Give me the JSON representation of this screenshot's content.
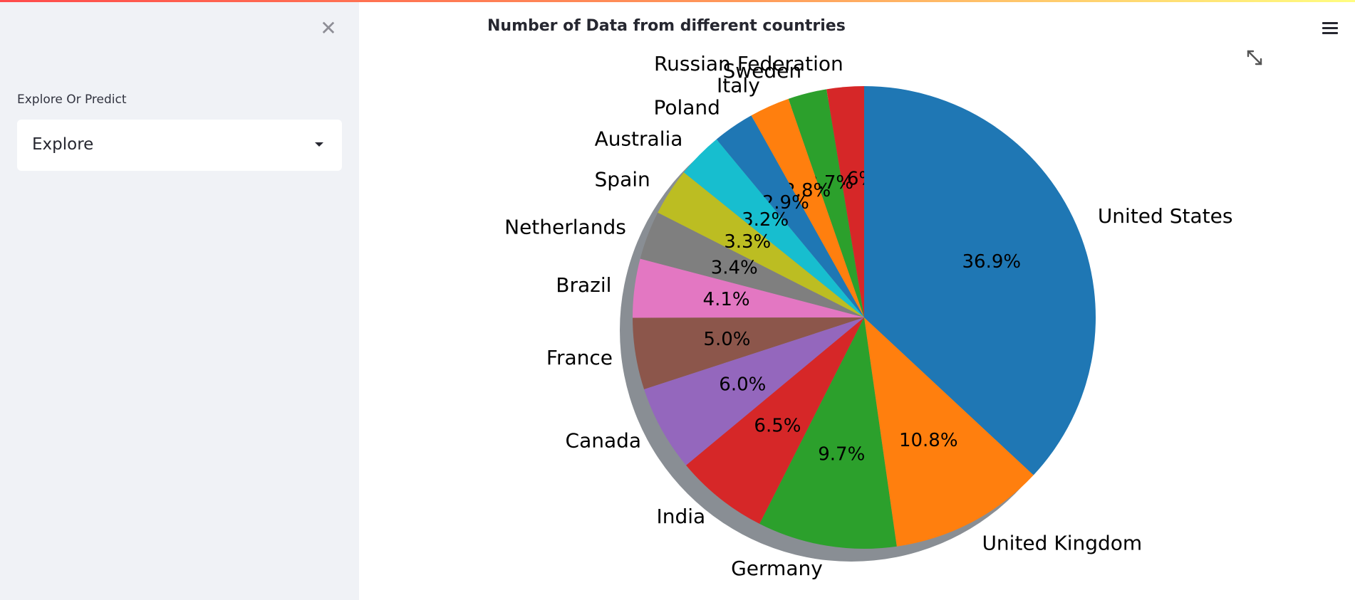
{
  "sidebar": {
    "close_icon": "close-icon",
    "select_label": "Explore Or Predict",
    "select_value": "Explore",
    "background": "#f0f2f6"
  },
  "header": {
    "menu_icon": "hamburger-menu-icon",
    "expand_icon": "fullscreen-expand-icon"
  },
  "chart_data": {
    "type": "pie",
    "title": "Number of Data from different countries",
    "shadow": true,
    "start_angle_deg": 90,
    "categories": [
      "Russian Federation",
      "Sweden",
      "Italy",
      "Poland",
      "Australia",
      "Spain",
      "Netherlands",
      "Brazil",
      "France",
      "Canada",
      "India",
      "Germany",
      "United Kingdom",
      "United States"
    ],
    "values": [
      2.6,
      2.7,
      2.8,
      2.9,
      3.2,
      3.3,
      3.4,
      4.1,
      5.0,
      6.0,
      6.5,
      9.7,
      10.8,
      36.9
    ],
    "value_labels": [
      "2.6%",
      "2.7%",
      "2.8%",
      "2.9%",
      "3.2%",
      "3.3%",
      "3.4%",
      "4.1%",
      "5.0%",
      "6.0%",
      "6.5%",
      "9.7%",
      "10.8%",
      "36.9%"
    ],
    "colors": [
      "#d62728",
      "#2ca02c",
      "#ff7f0e",
      "#1f77b4",
      "#17becf",
      "#bcbd22",
      "#7f7f7f",
      "#e377c2",
      "#8c564b",
      "#9467bd",
      "#d62728",
      "#2ca02c",
      "#ff7f0e",
      "#1f77b4"
    ]
  }
}
